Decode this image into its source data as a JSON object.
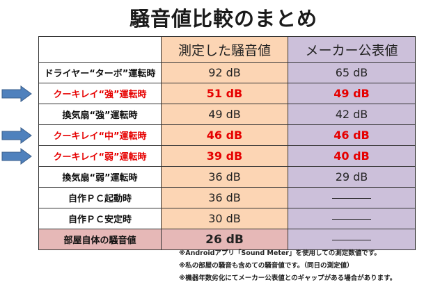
{
  "title": "騒音値比較のまとめ",
  "table": {
    "headers": [
      "",
      "測定した騒音値",
      "メーカー公表値"
    ],
    "rows": [
      {
        "label": "ドライヤー“ターボ”運転時",
        "measured": "92 dB",
        "maker": "65 dB",
        "highlight": false,
        "room": false
      },
      {
        "label": "クーキレイ“強”運転時",
        "measured": "51 dB",
        "maker": "49 dB",
        "highlight": true,
        "room": false
      },
      {
        "label": "換気扇“強”運転時",
        "measured": "49 dB",
        "maker": "42 dB",
        "highlight": false,
        "room": false
      },
      {
        "label": "クーキレイ“中”運転時",
        "measured": "46 dB",
        "maker": "46 dB",
        "highlight": true,
        "room": false
      },
      {
        "label": "クーキレイ“弱”運転時",
        "measured": "39 dB",
        "maker": "40 dB",
        "highlight": true,
        "room": false
      },
      {
        "label": "換気扇“弱”運転時",
        "measured": "36 dB",
        "maker": "29 dB",
        "highlight": false,
        "room": false
      },
      {
        "label": "自作ＰＣ起動時",
        "measured": "36 dB",
        "maker": "",
        "highlight": false,
        "room": false
      },
      {
        "label": "自作ＰＣ安定時",
        "measured": "30 dB",
        "maker": "",
        "highlight": false,
        "room": false
      },
      {
        "label": "部屋自体の騒音値",
        "measured": "26 dB",
        "maker": "",
        "highlight": false,
        "room": true
      }
    ]
  },
  "notes": [
    "※Androidアプリ「Sound Meter」を使用しての測定数値です。",
    "※私の部屋の騒音も含めての騒音値です。（同日の測定値）",
    "※機器年数劣化にてメーカー公表値とのギャップがある場合があります。"
  ],
  "colors": {
    "measured_bg": "#fcd5b4",
    "maker_bg": "#ccc0da",
    "room_bg": "#e6b8b7",
    "highlight_text": "#e60000",
    "arrow": "#4f81bd"
  },
  "icons": {
    "row_marker": "right-arrow-icon",
    "not_published": "dash-line"
  }
}
